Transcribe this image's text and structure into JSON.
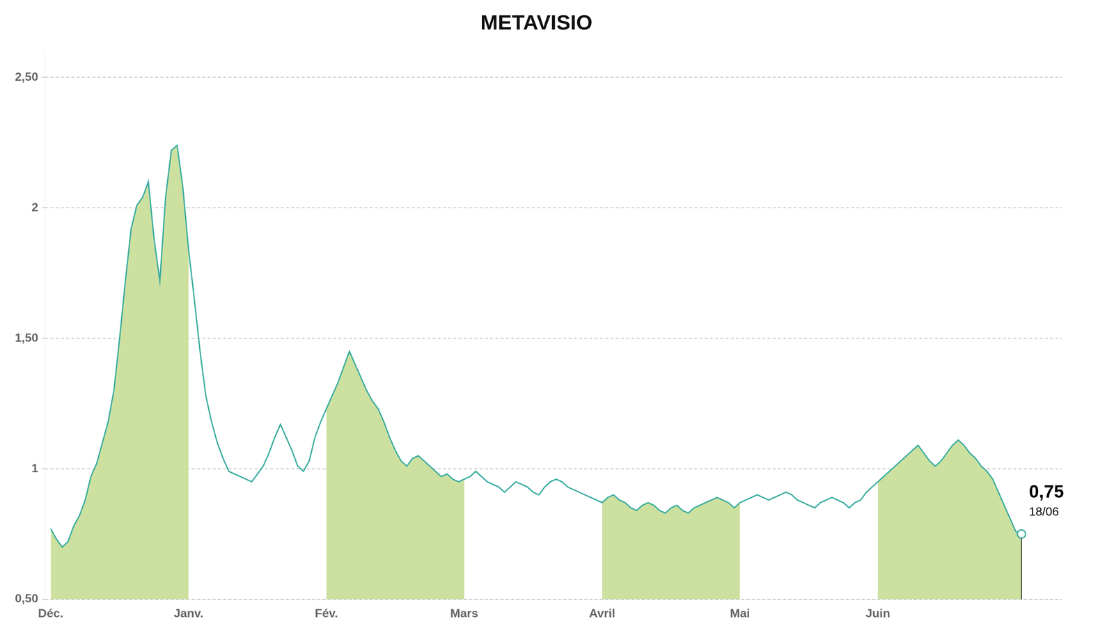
{
  "chart_data": {
    "type": "line",
    "title": "METAVISIO",
    "categories": [
      "Déc.",
      null,
      null,
      null,
      null,
      null,
      null,
      null,
      null,
      null,
      null,
      null,
      null,
      null,
      null,
      null,
      null,
      null,
      null,
      null,
      null,
      null,
      null,
      null,
      "Janv.",
      null,
      null,
      null,
      null,
      null,
      null,
      null,
      null,
      null,
      null,
      null,
      null,
      null,
      null,
      null,
      null,
      null,
      null,
      null,
      null,
      null,
      null,
      null,
      "Fév.",
      null,
      null,
      null,
      null,
      null,
      null,
      null,
      null,
      null,
      null,
      null,
      null,
      null,
      null,
      null,
      null,
      null,
      null,
      null,
      null,
      null,
      null,
      null,
      "Mars",
      null,
      null,
      null,
      null,
      null,
      null,
      null,
      null,
      null,
      null,
      null,
      null,
      null,
      null,
      null,
      null,
      null,
      null,
      null,
      null,
      null,
      null,
      null,
      "Avril",
      null,
      null,
      null,
      null,
      null,
      null,
      null,
      null,
      null,
      null,
      null,
      null,
      null,
      null,
      null,
      null,
      null,
      null,
      null,
      null,
      null,
      null,
      null,
      "Mai",
      null,
      null,
      null,
      null,
      null,
      null,
      null,
      null,
      null,
      null,
      null,
      null,
      null,
      null,
      null,
      null,
      null,
      null,
      null,
      null,
      null,
      null,
      null,
      "Juin",
      null,
      null,
      null,
      null,
      null,
      null,
      null,
      null,
      null,
      null,
      null,
      null,
      null,
      null,
      null,
      null,
      null,
      null,
      null,
      null,
      null,
      null,
      null,
      null,
      null
    ],
    "series": [
      {
        "color": "#3aada0",
        "values": [
          0.77,
          0.73,
          0.7,
          0.72,
          0.78,
          0.82,
          0.88,
          0.97,
          1.02,
          1.1,
          1.18,
          1.3,
          1.5,
          1.72,
          1.92,
          2.01,
          2.04,
          2.1,
          1.88,
          1.72,
          2.04,
          2.22,
          2.24,
          2.08,
          1.84,
          1.65,
          1.45,
          1.28,
          1.18,
          1.1,
          1.04,
          0.99,
          0.98,
          0.97,
          0.96,
          0.95,
          0.98,
          1.01,
          1.06,
          1.12,
          1.17,
          1.12,
          1.07,
          1.01,
          0.99,
          1.03,
          1.12,
          1.18,
          1.23,
          1.28,
          1.33,
          1.39,
          1.45,
          1.4,
          1.35,
          1.3,
          1.26,
          1.23,
          1.18,
          1.12,
          1.07,
          1.03,
          1.01,
          1.04,
          1.05,
          1.03,
          1.01,
          0.99,
          0.97,
          0.98,
          0.96,
          0.95,
          0.96,
          0.97,
          0.99,
          0.97,
          0.95,
          0.94,
          0.93,
          0.91,
          0.93,
          0.95,
          0.94,
          0.93,
          0.91,
          0.9,
          0.93,
          0.95,
          0.96,
          0.95,
          0.93,
          0.92,
          0.91,
          0.9,
          0.89,
          0.88,
          0.87,
          0.89,
          0.9,
          0.88,
          0.87,
          0.85,
          0.84,
          0.86,
          0.87,
          0.86,
          0.84,
          0.83,
          0.85,
          0.86,
          0.84,
          0.83,
          0.85,
          0.86,
          0.87,
          0.88,
          0.89,
          0.88,
          0.87,
          0.85,
          0.87,
          0.88,
          0.89,
          0.9,
          0.89,
          0.88,
          0.89,
          0.9,
          0.91,
          0.9,
          0.88,
          0.87,
          0.86,
          0.85,
          0.87,
          0.88,
          0.89,
          0.88,
          0.87,
          0.85,
          0.87,
          0.88,
          0.91,
          0.93,
          0.95,
          0.97,
          0.99,
          1.01,
          1.03,
          1.05,
          1.07,
          1.09,
          1.06,
          1.03,
          1.01,
          1.03,
          1.06,
          1.09,
          1.11,
          1.09,
          1.06,
          1.04,
          1.01,
          0.99,
          0.96,
          0.91,
          0.86,
          0.81,
          0.76,
          0.75
        ]
      }
    ],
    "shading": {
      "months": [
        "Déc.",
        "Fév.",
        "Avril",
        "Juin"
      ],
      "color": "#cce0a0"
    },
    "annotations": [
      "0,75",
      "18/06"
    ],
    "ylim": [
      0.5,
      2.6
    ],
    "yticks": [
      {
        "value": 0.5,
        "label": "0,50"
      },
      1,
      {
        "value": 1.5,
        "label": "1,50"
      },
      2,
      {
        "value": 2.5,
        "label": "2,50"
      }
    ],
    "grid": true
  }
}
